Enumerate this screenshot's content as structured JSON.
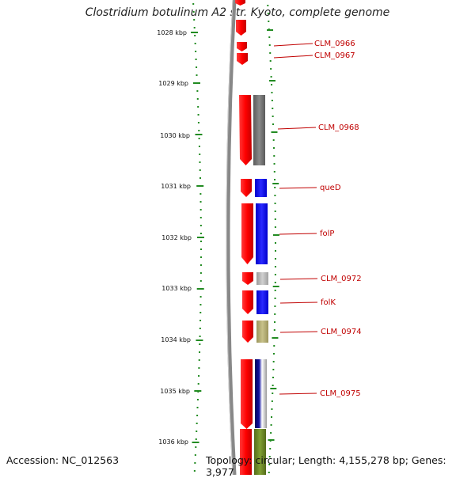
{
  "title": "Clostridium botulinum A2 str. Kyoto, complete genome",
  "footer": {
    "accession": "Accession: NC_012563",
    "topology": "Topology: circular; Length: 4,155,278 bp; Genes: 3,977"
  },
  "ticks": [
    "1028 kbp",
    "1029 kbp",
    "1030 kbp",
    "1031 kbp",
    "1032 kbp",
    "1033 kbp",
    "1034 kbp",
    "1035 kbp",
    "1036 kbp"
  ],
  "gene_labels": [
    "CLM_0966",
    "CLM_0967",
    "CLM_0968",
    "queD",
    "folP",
    "CLM_0972",
    "folK",
    "CLM_0974",
    "CLM_0975"
  ],
  "colors": {
    "gene_forward": "#ff0000",
    "label_red": "#c00000",
    "tick_green": "#228b22",
    "backbone": "#888888",
    "cds_gray": "#707070",
    "cds_blue": "#0000ff",
    "cds_light_gray": "#b0b0b0",
    "cds_khaki": "#b0aa70",
    "cds_navy": "#00007a",
    "cds_olive": "#6b8e23"
  }
}
